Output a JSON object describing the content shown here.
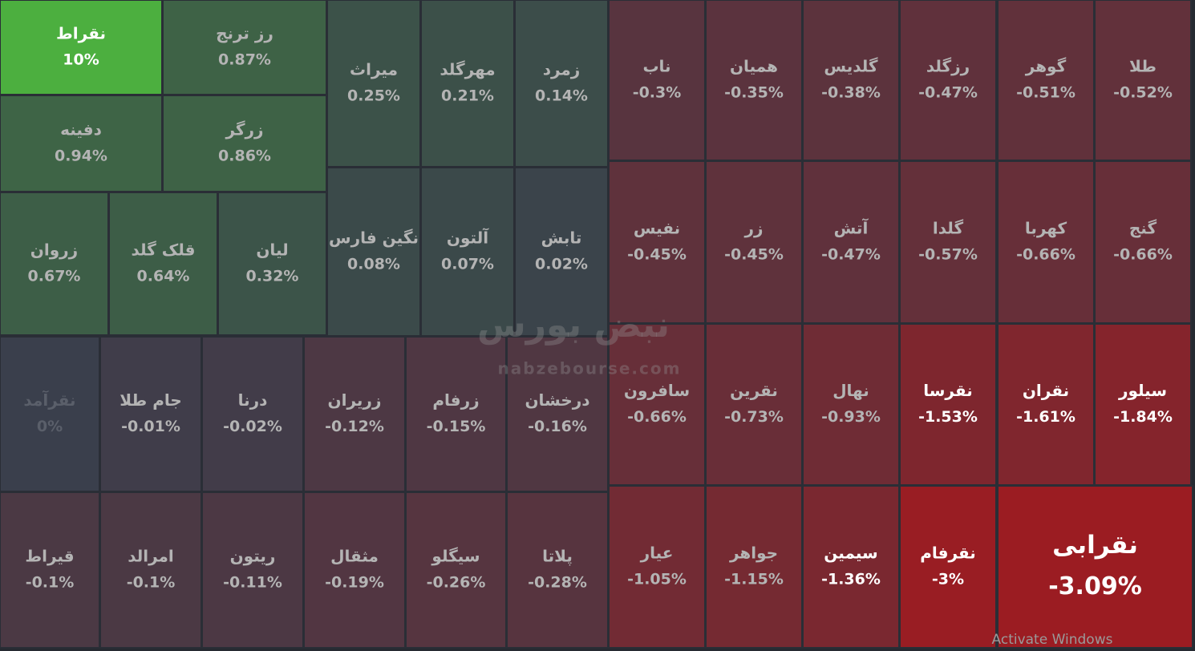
{
  "chart_data": {
    "type": "treemap",
    "categories": [
      "نقراط",
      "رز ترنج",
      "دفینه",
      "زرگر",
      "زروان",
      "قلک گلد",
      "لیان",
      "میراث",
      "مهرگلد",
      "زمرد",
      "نگین فارس",
      "آلتون",
      "تابش",
      "نقرآمد",
      "جام طلا",
      "درنا",
      "زریران",
      "زرفام",
      "درخشان",
      "قیراط",
      "امرالد",
      "ریتون",
      "مثقال",
      "سیگلو",
      "پلاتا",
      "ناب",
      "همیان",
      "گلدیس",
      "رزگلد",
      "گوهر",
      "طلا",
      "نفیس",
      "زر",
      "آتش",
      "گلدا",
      "کهربا",
      "گنج",
      "سافرون",
      "نقرین",
      "نهال",
      "نقرسا",
      "نقران",
      "سیلور",
      "عیار",
      "جواهر",
      "سیمین",
      "نقرفام",
      "نقرابی"
    ],
    "values": [
      10,
      0.87,
      0.94,
      0.86,
      0.67,
      0.64,
      0.32,
      0.25,
      0.21,
      0.14,
      0.08,
      0.07,
      0.02,
      0,
      -0.01,
      -0.02,
      -0.12,
      -0.15,
      -0.16,
      -0.1,
      -0.1,
      -0.11,
      -0.19,
      -0.26,
      -0.28,
      -0.3,
      -0.35,
      -0.38,
      -0.47,
      -0.51,
      -0.52,
      -0.45,
      -0.45,
      -0.47,
      -0.57,
      -0.66,
      -0.66,
      -0.66,
      -0.73,
      -0.93,
      -1.53,
      -1.61,
      -1.84,
      -1.05,
      -1.15,
      -1.36,
      -3,
      -3.09
    ],
    "value_labels": [
      "10%",
      "0.87%",
      "0.94%",
      "0.86%",
      "0.67%",
      "0.64%",
      "0.32%",
      "0.25%",
      "0.21%",
      "0.14%",
      "0.08%",
      "0.07%",
      "0.02%",
      "0%",
      "-0.01%",
      "-0.02%",
      "-0.12%",
      "-0.15%",
      "-0.16%",
      "-0.1%",
      "-0.1%",
      "-0.11%",
      "-0.19%",
      "-0.26%",
      "-0.28%",
      "-0.3%",
      "-0.35%",
      "-0.38%",
      "-0.47%",
      "-0.51%",
      "-0.52%",
      "-0.45%",
      "-0.45%",
      "-0.47%",
      "-0.57%",
      "-0.66%",
      "-0.66%",
      "-0.66%",
      "-0.73%",
      "-0.93%",
      "-1.53%",
      "-1.61%",
      "-1.84%",
      "-1.05%",
      "-1.15%",
      "-1.36%",
      "-3%",
      "-3.09%"
    ],
    "watermark": "nabzebourse.com",
    "watermark_brand": "نبض بورس",
    "overlay_text": "Activate Windows"
  }
}
